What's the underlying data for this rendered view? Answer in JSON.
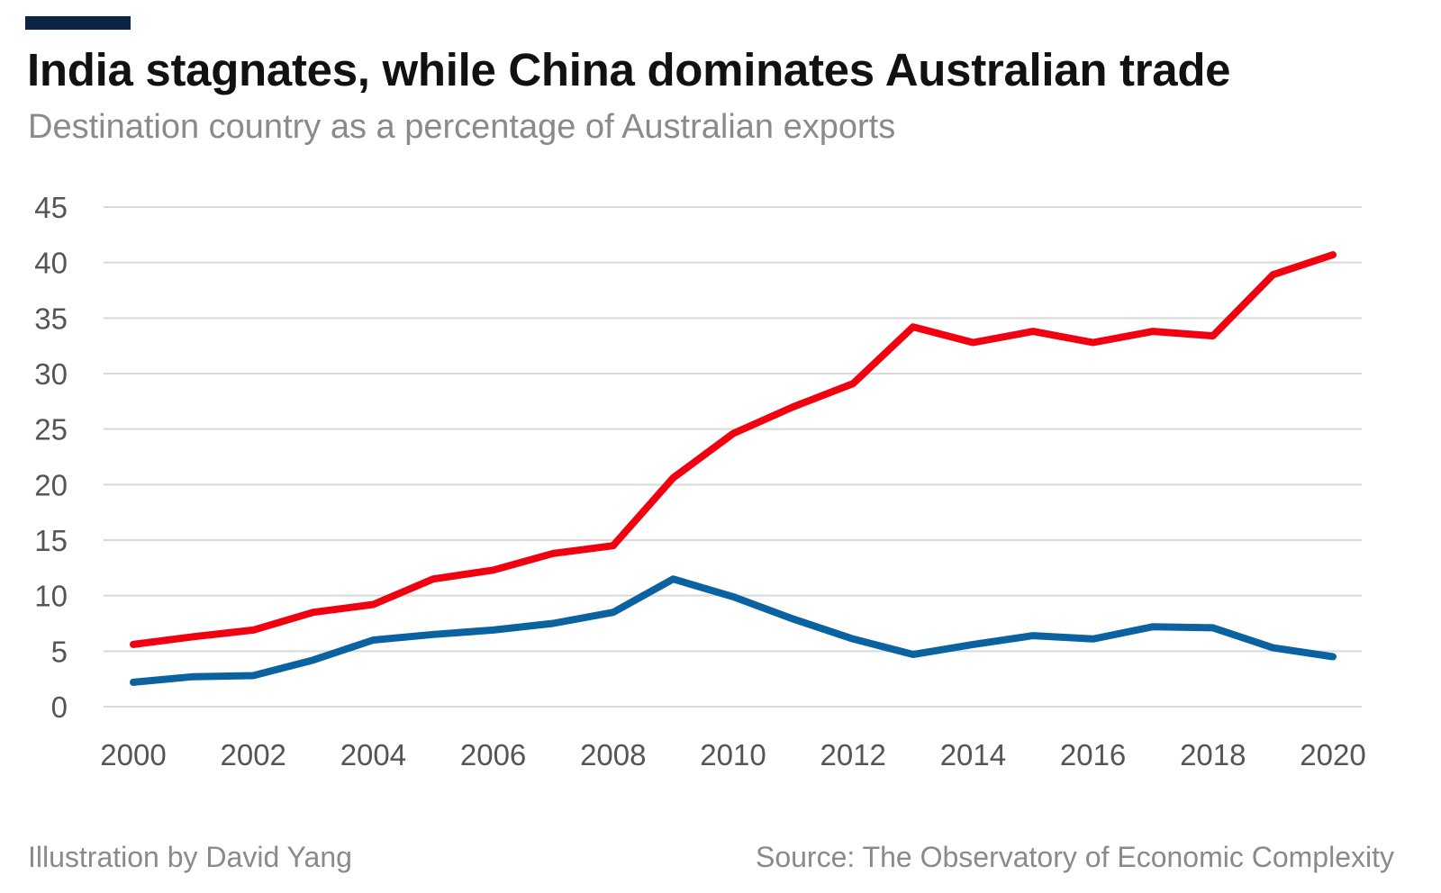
{
  "title": "India stagnates, while China dominates Australian trade",
  "subtitle": "Destination country as a percentage of Australian exports",
  "footer": {
    "credit": "Illustration by David Yang",
    "source": "Source: The Observatory of Economic Complexity"
  },
  "colors": {
    "accent": "#0d2447",
    "china": "#f2000f",
    "india": "#0a63a0",
    "grid": "#d9d9d9"
  },
  "chart_data": {
    "type": "line",
    "x": [
      2000,
      2001,
      2002,
      2003,
      2004,
      2005,
      2006,
      2007,
      2008,
      2009,
      2010,
      2011,
      2012,
      2013,
      2014,
      2015,
      2016,
      2017,
      2018,
      2019,
      2020
    ],
    "series": [
      {
        "key": "china",
        "values": [
          5.6,
          6.3,
          6.9,
          8.5,
          9.2,
          11.5,
          12.3,
          13.8,
          14.5,
          20.6,
          24.6,
          27.0,
          29.1,
          34.2,
          32.8,
          33.8,
          32.8,
          33.8,
          33.4,
          38.9,
          40.7
        ]
      },
      {
        "key": "india",
        "values": [
          2.2,
          2.7,
          2.8,
          4.2,
          6.0,
          6.5,
          6.9,
          7.5,
          8.5,
          11.5,
          9.9,
          7.9,
          6.1,
          4.7,
          5.6,
          6.4,
          6.1,
          7.2,
          7.1,
          5.3,
          4.5
        ]
      }
    ],
    "xticks": [
      "2000",
      "2002",
      "2004",
      "2006",
      "2008",
      "2010",
      "2012",
      "2014",
      "2016",
      "2018",
      "2020"
    ],
    "yticks": [
      "0",
      "5",
      "10",
      "15",
      "20",
      "25",
      "30",
      "35",
      "40",
      "45"
    ],
    "xlim": [
      2000,
      2020
    ],
    "ylim": [
      0,
      45
    ],
    "grid": true,
    "legend": "none"
  }
}
